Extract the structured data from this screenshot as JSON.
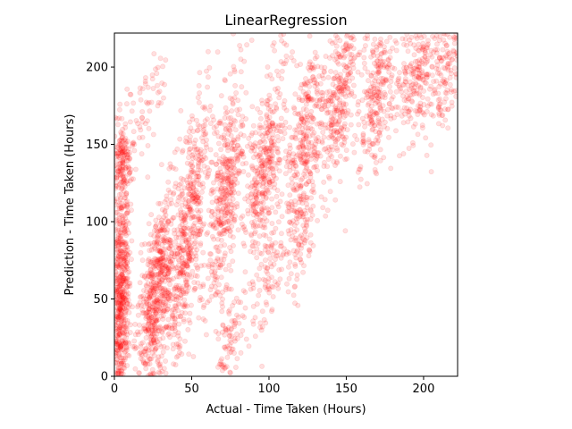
{
  "chart_data": {
    "type": "scatter",
    "title": "LinearRegression",
    "xlabel": "Actual - Time Taken (Hours)",
    "ylabel": "Prediction - Time Taken (Hours)",
    "xlim": [
      0,
      222
    ],
    "ylim": [
      0,
      222
    ],
    "xticks": [
      0,
      50,
      100,
      150,
      200
    ],
    "yticks": [
      0,
      50,
      100,
      150,
      200
    ],
    "grid": false,
    "legend": "none",
    "marker_color": "#ff0000",
    "marker_alpha": 0.12,
    "series": [
      {
        "clusters": [
          {
            "x": 4,
            "y": 50,
            "sx": 3,
            "sy": 42,
            "slope": 0,
            "n": 700
          },
          {
            "x": 5,
            "y": 140,
            "sx": 3,
            "sy": 12,
            "slope": 0,
            "n": 140
          },
          {
            "x": 27,
            "y": 50,
            "sx": 5,
            "sy": 38,
            "slope": 2.2,
            "n": 650
          },
          {
            "x": 48,
            "y": 95,
            "sx": 5,
            "sy": 40,
            "slope": 2.2,
            "n": 520
          },
          {
            "x": 72,
            "y": 120,
            "sx": 5,
            "sy": 40,
            "slope": 2.2,
            "n": 420
          },
          {
            "x": 97,
            "y": 135,
            "sx": 5,
            "sy": 36,
            "slope": 2.2,
            "n": 380
          },
          {
            "x": 122,
            "y": 148,
            "sx": 5,
            "sy": 34,
            "slope": 2.2,
            "n": 340
          },
          {
            "x": 145,
            "y": 178,
            "sx": 5,
            "sy": 28,
            "slope": 2.0,
            "n": 300
          },
          {
            "x": 170,
            "y": 188,
            "sx": 6,
            "sy": 26,
            "slope": 2.0,
            "n": 280
          },
          {
            "x": 195,
            "y": 198,
            "sx": 6,
            "sy": 24,
            "slope": 1.8,
            "n": 240
          },
          {
            "x": 215,
            "y": 200,
            "sx": 5,
            "sy": 22,
            "slope": 1.5,
            "n": 150
          },
          {
            "x": 20,
            "y": 175,
            "sx": 6,
            "sy": 20,
            "slope": 1.5,
            "n": 60
          },
          {
            "x": 75,
            "y": 22,
            "sx": 4,
            "sy": 18,
            "slope": 2.5,
            "n": 90
          },
          {
            "x": 100,
            "y": 65,
            "sx": 4,
            "sy": 20,
            "slope": 2.5,
            "n": 80
          },
          {
            "x": 122,
            "y": 95,
            "sx": 4,
            "sy": 18,
            "slope": 2.5,
            "n": 70
          }
        ]
      }
    ]
  }
}
